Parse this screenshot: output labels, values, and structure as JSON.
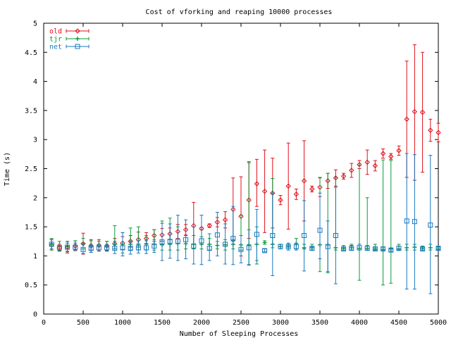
{
  "chart_data": {
    "type": "scatter",
    "title": "Cost of vforking and reaping 10000 processes",
    "xlabel": "Number of Sleeping Processes",
    "ylabel": "Time (s)",
    "xlim": [
      0,
      5000
    ],
    "ylim": [
      0,
      5
    ],
    "x_ticks": [
      "0",
      "500",
      "1000",
      "1500",
      "2000",
      "2500",
      "3000",
      "3500",
      "4000",
      "4500",
      "5000"
    ],
    "y_ticks": [
      "0",
      "0.5",
      "1",
      "1.5",
      "2",
      "2.5",
      "3",
      "3.5",
      "4",
      "4.5",
      "5"
    ],
    "grid": false,
    "legend_position": "top-left",
    "error_bars": true,
    "x": [
      100,
      200,
      300,
      400,
      500,
      600,
      700,
      800,
      900,
      1000,
      1100,
      1200,
      1300,
      1400,
      1500,
      1600,
      1700,
      1800,
      1900,
      2000,
      2100,
      2200,
      2300,
      2400,
      2500,
      2600,
      2700,
      2800,
      2900,
      3000,
      3100,
      3200,
      3300,
      3400,
      3500,
      3600,
      3700,
      3800,
      3900,
      4000,
      4100,
      4200,
      4300,
      4400,
      4500,
      4600,
      4700,
      4800,
      4900,
      5000
    ],
    "series": [
      {
        "name": "old",
        "color": "#e0101a",
        "marker": "diamond",
        "values": [
          1.19,
          1.14,
          1.15,
          1.17,
          1.21,
          1.17,
          1.18,
          1.17,
          1.21,
          1.22,
          1.25,
          1.28,
          1.3,
          1.35,
          1.36,
          1.38,
          1.42,
          1.45,
          1.52,
          1.47,
          1.52,
          1.58,
          1.62,
          1.8,
          1.68,
          1.96,
          2.24,
          2.11,
          2.08,
          1.96,
          2.2,
          2.06,
          2.29,
          2.15,
          2.18,
          2.29,
          2.34,
          2.37,
          2.47,
          2.57,
          2.61,
          2.55,
          2.76,
          2.71,
          2.81,
          3.35,
          3.48,
          3.47,
          3.16,
          3.12
        ],
        "lower": [
          1.1,
          1.08,
          1.05,
          1.09,
          1.03,
          1.06,
          1.08,
          1.09,
          1.12,
          1.11,
          1.15,
          1.15,
          1.2,
          1.25,
          1.25,
          1.28,
          1.3,
          1.36,
          1.12,
          1.45,
          1.49,
          1.5,
          1.48,
          1.25,
          1.0,
          1.3,
          1.85,
          1.4,
          1.48,
          1.88,
          1.46,
          1.97,
          1.6,
          2.1,
          2.02,
          2.16,
          2.2,
          2.32,
          2.35,
          2.5,
          2.4,
          2.46,
          2.68,
          2.66,
          2.73,
          2.35,
          2.3,
          2.44,
          2.97,
          2.96
        ],
        "upper": [
          1.28,
          1.2,
          1.25,
          1.26,
          1.39,
          1.28,
          1.28,
          1.25,
          1.3,
          1.33,
          1.35,
          1.41,
          1.4,
          1.45,
          1.47,
          1.48,
          1.54,
          1.54,
          1.92,
          1.49,
          1.55,
          1.66,
          1.76,
          2.34,
          2.36,
          2.62,
          2.66,
          2.82,
          2.68,
          2.04,
          2.94,
          2.15,
          2.98,
          2.2,
          2.34,
          2.42,
          2.48,
          2.42,
          2.59,
          2.64,
          2.82,
          2.64,
          2.84,
          2.76,
          2.89,
          4.35,
          4.63,
          4.5,
          3.35,
          3.28
        ]
      },
      {
        "name": "tjr",
        "color": "#0a9a3a",
        "marker": "plus",
        "values": [
          1.2,
          1.17,
          1.16,
          1.18,
          1.21,
          1.18,
          1.17,
          1.17,
          1.2,
          1.2,
          1.2,
          1.2,
          1.21,
          1.2,
          1.19,
          1.2,
          1.21,
          1.21,
          1.2,
          1.2,
          1.2,
          1.18,
          1.19,
          1.2,
          1.19,
          1.19,
          1.2,
          1.23,
          1.2,
          1.16,
          1.17,
          1.2,
          1.14,
          1.14,
          1.19,
          1.19,
          1.14,
          1.13,
          1.14,
          1.13,
          1.13,
          1.12,
          1.11,
          1.12,
          1.12,
          1.14,
          1.15,
          1.13,
          1.14,
          1.12
        ],
        "lower": [
          1.1,
          1.09,
          1.07,
          1.1,
          1.12,
          1.1,
          1.1,
          1.1,
          1.12,
          1.05,
          1.1,
          1.1,
          1.1,
          1.1,
          1.1,
          1.1,
          1.1,
          1.12,
          1.12,
          1.12,
          1.1,
          1.12,
          1.1,
          1.12,
          1.1,
          0.84,
          0.86,
          1.2,
          1.14,
          1.12,
          1.15,
          1.12,
          1.12,
          1.1,
          0.73,
          0.71,
          1.1,
          1.1,
          1.1,
          0.58,
          1.1,
          1.1,
          0.5,
          0.53,
          1.1,
          1.1,
          1.1,
          1.1,
          1.1,
          1.1
        ],
        "upper": [
          1.3,
          1.25,
          1.25,
          1.26,
          1.3,
          1.26,
          1.25,
          1.25,
          1.52,
          1.4,
          1.48,
          1.5,
          1.35,
          1.45,
          1.6,
          1.65,
          1.5,
          1.35,
          1.35,
          1.33,
          1.3,
          1.25,
          1.28,
          1.28,
          1.7,
          2.6,
          1.5,
          1.26,
          2.33,
          1.2,
          1.2,
          1.3,
          1.2,
          1.2,
          2.35,
          2.42,
          2.35,
          1.18,
          1.2,
          2.56,
          2.0,
          1.2,
          2.65,
          2.64,
          1.2,
          1.2,
          1.2,
          1.17,
          1.2,
          1.15
        ]
      },
      {
        "name": "net",
        "color": "#1a78c2",
        "marker": "square",
        "values": [
          1.2,
          1.14,
          1.15,
          1.15,
          1.11,
          1.13,
          1.14,
          1.14,
          1.13,
          1.14,
          1.13,
          1.14,
          1.14,
          1.17,
          1.24,
          1.25,
          1.25,
          1.28,
          1.17,
          1.26,
          1.13,
          1.36,
          1.2,
          1.3,
          1.11,
          1.14,
          1.37,
          1.09,
          1.35,
          1.16,
          1.16,
          1.16,
          1.35,
          1.13,
          1.44,
          1.16,
          1.35,
          1.12,
          1.13,
          1.14,
          1.13,
          1.12,
          1.12,
          1.1,
          1.13,
          1.6,
          1.59,
          1.12,
          1.53,
          1.13
        ],
        "lower": [
          1.12,
          1.1,
          1.08,
          1.1,
          1.04,
          1.06,
          1.1,
          1.08,
          1.04,
          1.0,
          1.03,
          1.05,
          1.04,
          1.06,
          0.92,
          0.96,
          0.92,
          0.95,
          0.86,
          0.85,
          0.92,
          1.0,
          0.86,
          0.85,
          0.88,
          0.85,
          0.92,
          1.07,
          0.66,
          1.12,
          1.1,
          1.1,
          0.74,
          1.1,
          0.95,
          0.73,
          0.52,
          1.1,
          1.1,
          1.1,
          1.1,
          1.1,
          1.1,
          1.08,
          1.1,
          0.43,
          0.43,
          1.1,
          0.35,
          1.1
        ],
        "upper": [
          1.28,
          1.18,
          1.22,
          1.22,
          1.2,
          1.2,
          1.2,
          1.2,
          1.25,
          1.4,
          1.25,
          1.26,
          1.26,
          1.28,
          1.56,
          1.55,
          1.7,
          1.62,
          1.5,
          1.7,
          1.38,
          1.75,
          1.55,
          1.85,
          1.35,
          1.45,
          1.8,
          1.12,
          2.08,
          1.2,
          1.22,
          1.22,
          1.95,
          1.16,
          2.08,
          1.6,
          2.18,
          1.15,
          1.18,
          1.2,
          1.18,
          1.15,
          1.15,
          1.13,
          1.17,
          2.76,
          2.74,
          1.15,
          2.73,
          1.16
        ]
      }
    ]
  }
}
